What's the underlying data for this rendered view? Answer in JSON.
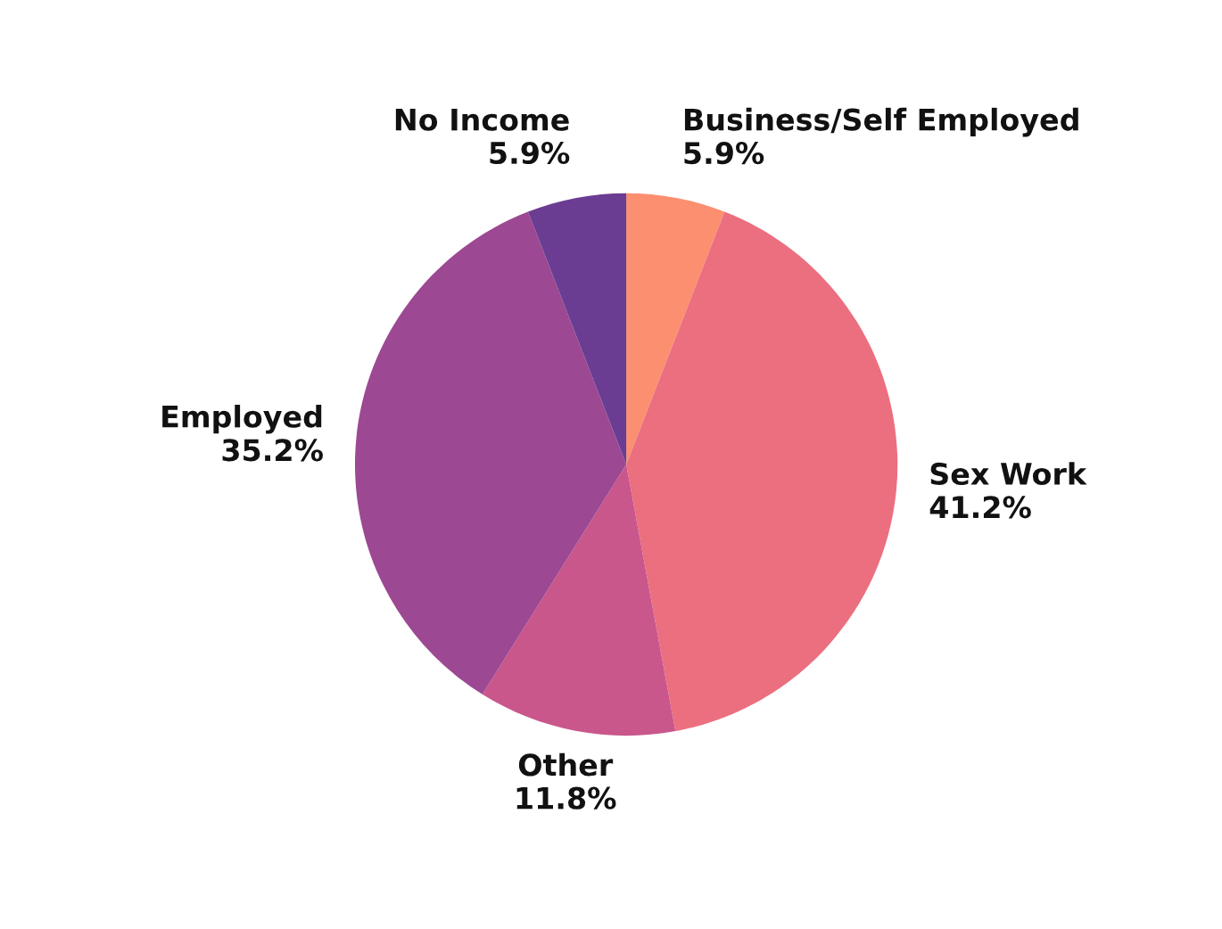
{
  "chart_data": {
    "type": "pie",
    "categories": [
      "Business/Self Employed",
      "Sex Work",
      "Other",
      "Employed",
      "No Income"
    ],
    "values": [
      5.9,
      41.2,
      11.8,
      35.2,
      5.9
    ],
    "value_labels": [
      "5.9%",
      "41.2%",
      "11.8%",
      "35.2%",
      "5.9%"
    ],
    "colors": [
      "#fc8f6f",
      "#eb6f7f",
      "#c9578b",
      "#9d4892",
      "#6b3d92"
    ],
    "legend": false
  }
}
